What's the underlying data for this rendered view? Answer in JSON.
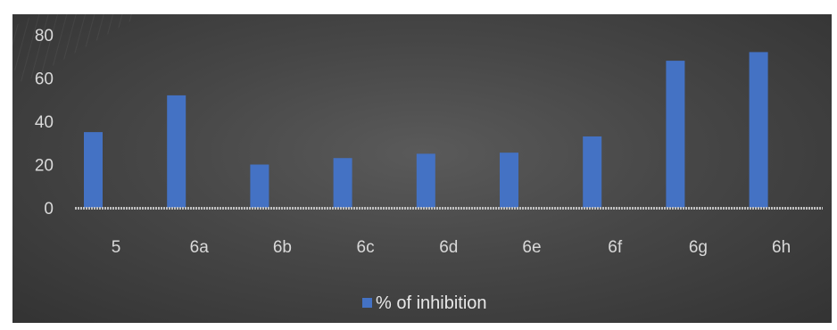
{
  "chart_data": {
    "type": "bar",
    "categories": [
      "5",
      "6a",
      "6b",
      "6c",
      "6d",
      "6e",
      "6f",
      "6g",
      "6h"
    ],
    "series": [
      {
        "name": "% of inhibition",
        "values": [
          35,
          52,
          20,
          23,
          25,
          25.5,
          33,
          68,
          72
        ],
        "color": "#4472c4"
      }
    ],
    "title": "",
    "xlabel": "",
    "ylabel": "",
    "ylim": [
      0,
      80
    ],
    "yticks": [
      0,
      20,
      40,
      60,
      80
    ],
    "grid": false,
    "legend": "bottom-center"
  },
  "colors": {
    "background": "#474747",
    "bar": "#4472c4",
    "axis_text": "#d9d9d9",
    "baseline": "#bfbfbf"
  }
}
